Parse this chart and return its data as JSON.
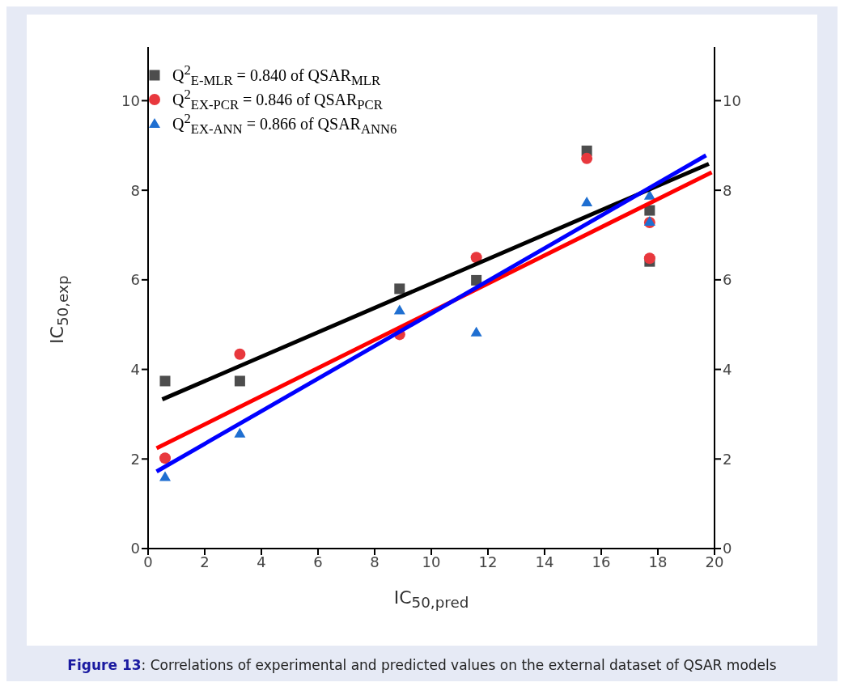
{
  "chart_data": {
    "type": "scatter",
    "xlabel": "IC$_{50,pred}$",
    "ylabel": "IC$_{50,exp}$",
    "xlim": [
      0,
      20
    ],
    "xticks": [
      0,
      2,
      4,
      6,
      8,
      10,
      12,
      14,
      16,
      18,
      20
    ],
    "ylim": [
      0,
      11.2
    ],
    "yticks": [
      0,
      2,
      4,
      6,
      8,
      10
    ],
    "y2lim": [
      0,
      11.2
    ],
    "y2ticks": [
      0,
      2,
      4,
      6,
      8,
      10
    ],
    "legend": "top left",
    "grid": false,
    "series": [
      {
        "name": "Q$^{2}$$_{E-MLR}$ = 0.840 of QSAR$_{MLR}$",
        "color": "#4d4d4d",
        "marker": "square",
        "x": [
          0.6,
          3.24,
          8.88,
          11.59,
          15.49,
          17.71,
          17.71
        ],
        "values": [
          3.74,
          3.74,
          5.8,
          5.99,
          8.88,
          7.55,
          6.41
        ]
      },
      {
        "name": "Q$^{2}$$_{EX-PCR}$ = 0.846 of QSAR$_{PCR}$",
        "color": "#e8383d",
        "marker": "circle",
        "x": [
          0.6,
          3.24,
          8.88,
          11.59,
          15.49,
          17.71,
          17.71
        ],
        "values": [
          2.02,
          4.34,
          4.78,
          6.5,
          8.71,
          7.28,
          6.48
        ]
      },
      {
        "name": "Q$^{2}$$_{EX-ANN}$ = 0.866 of QSAR$_{ANN6}$",
        "color": "#1f6fd1",
        "marker": "triangle",
        "x": [
          0.6,
          3.24,
          8.88,
          11.59,
          15.49,
          17.71,
          17.71
        ],
        "values": [
          1.6,
          2.57,
          5.32,
          4.83,
          7.73,
          7.88,
          7.3
        ]
      },
      {
        "type": "line",
        "color": "#000000",
        "x": [
          0.5,
          19.8
        ],
        "values": [
          3.33,
          8.59
        ]
      },
      {
        "type": "line",
        "color": "#ff0000",
        "x": [
          0.3,
          19.9
        ],
        "values": [
          2.24,
          8.4
        ]
      },
      {
        "type": "line",
        "color": "#0000ff",
        "x": [
          0.3,
          19.7
        ],
        "values": [
          1.72,
          8.78
        ]
      }
    ],
    "annotations": [
      "Figure 13: Correlations of experimental and predicted values on the external dataset of QSAR models"
    ]
  }
}
